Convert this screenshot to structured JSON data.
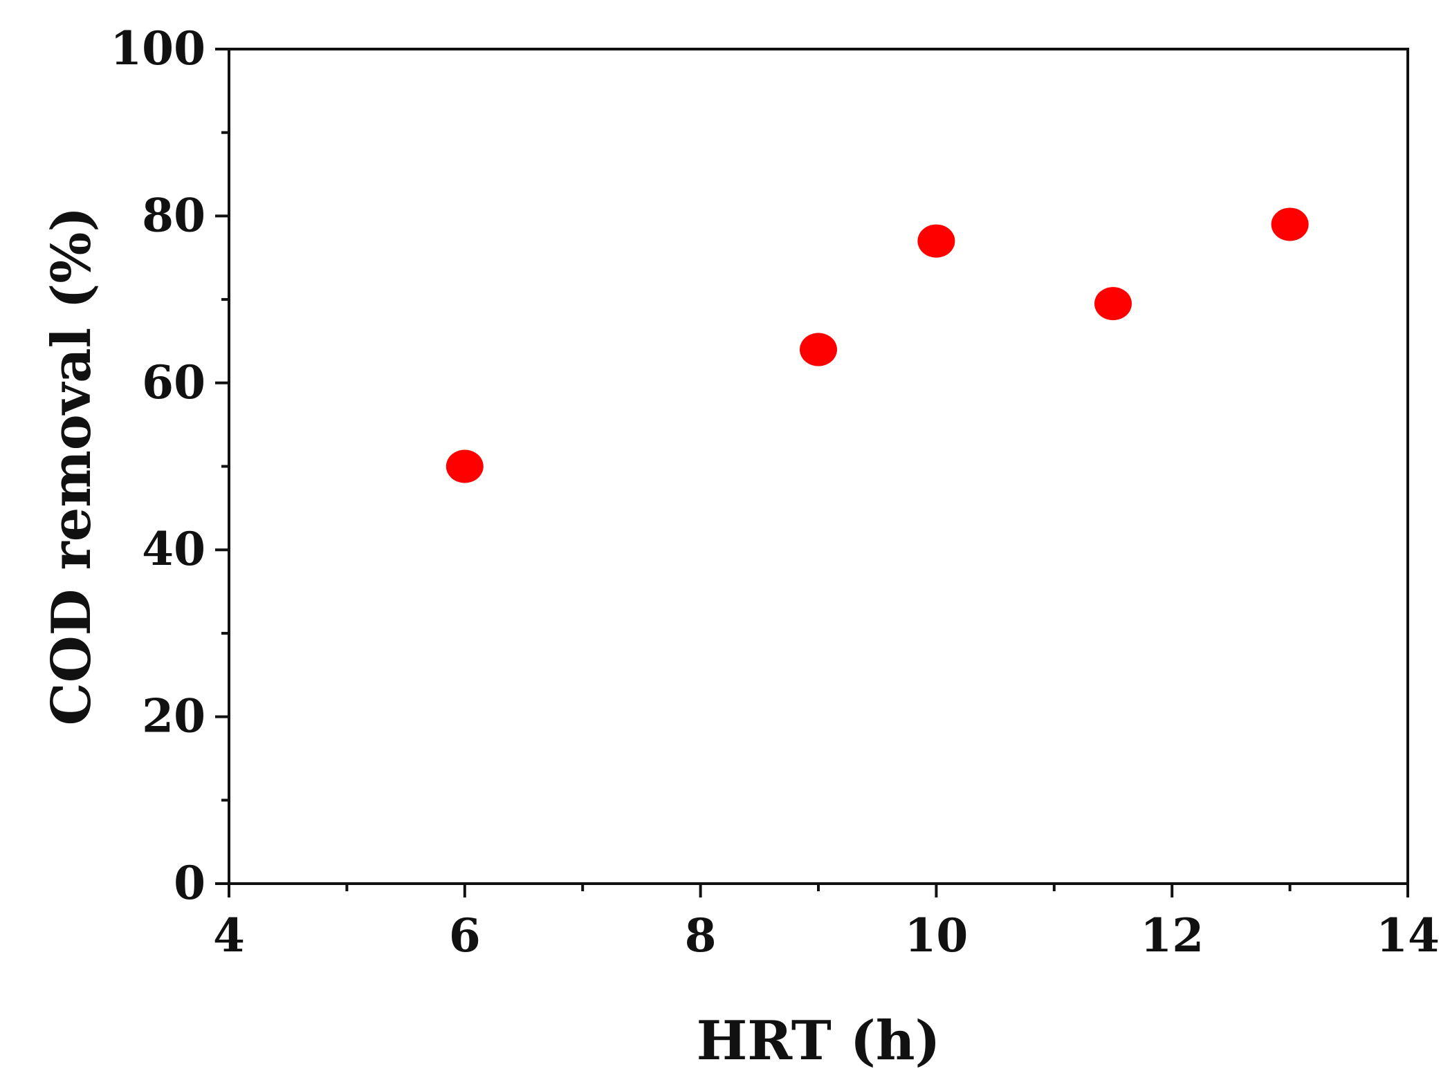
{
  "chart_data": {
    "type": "scatter",
    "title": "",
    "xlabel": "HRT (h)",
    "ylabel": "COD removal (%)",
    "xlim": [
      4,
      14
    ],
    "ylim": [
      0,
      100
    ],
    "x_ticks": [
      4,
      6,
      8,
      10,
      12,
      14
    ],
    "y_ticks": [
      0,
      20,
      40,
      60,
      80,
      100
    ],
    "x_tick_labels": [
      "4",
      "6",
      "8",
      "10",
      "12",
      "14"
    ],
    "y_tick_labels": [
      "0",
      "20",
      "40",
      "60",
      "80",
      "100"
    ],
    "grid": false,
    "legend": "none",
    "series": [
      {
        "color": "#ff0000",
        "marker": "circle",
        "points": [
          {
            "x": 6,
            "y": 50
          },
          {
            "x": 9,
            "y": 64
          },
          {
            "x": 10,
            "y": 77
          },
          {
            "x": 11.5,
            "y": 69.5
          },
          {
            "x": 13,
            "y": 79
          }
        ]
      }
    ]
  }
}
